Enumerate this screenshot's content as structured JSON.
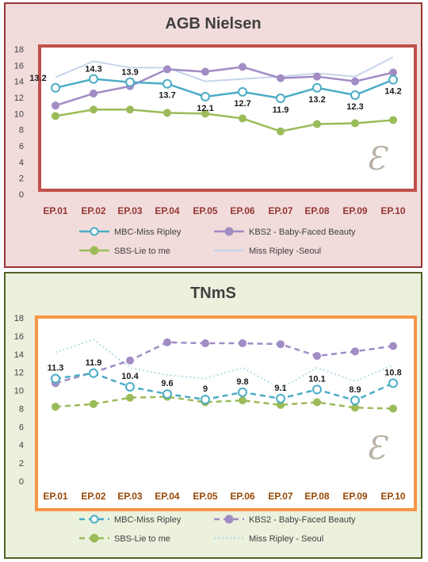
{
  "chart_data": [
    {
      "type": "line",
      "title": "AGB Nielsen",
      "categories": [
        "EP.01",
        "EP.02",
        "EP.03",
        "EP.04",
        "EP.05",
        "EP.06",
        "EP.07",
        "EP.08",
        "EP.09",
        "EP.10"
      ],
      "ylim": [
        0,
        18
      ],
      "yticks": [
        0,
        2,
        4,
        6,
        8,
        10,
        12,
        14,
        16,
        18
      ],
      "grid": false,
      "legend_position": "bottom",
      "plot_border_color": "#c0504d",
      "category_label_color": "#943634",
      "series": [
        {
          "name": "MBC-Miss Ripley",
          "color": "#4bacc6",
          "marker": "circle-open",
          "dash": "solid",
          "values": [
            13.2,
            14.3,
            13.9,
            13.7,
            12.1,
            12.7,
            11.9,
            13.2,
            12.3,
            14.2
          ],
          "labels": [
            "13.2",
            "14.3",
            "13.9",
            "13.7",
            "12.1",
            "12.7",
            "11.9",
            "13.2",
            "12.3",
            "14.2"
          ]
        },
        {
          "name": "KBS2 - Baby-Faced Beauty",
          "color": "#a18cc4",
          "marker": "circle",
          "dash": "solid",
          "values": [
            11.0,
            12.5,
            13.4,
            15.5,
            15.2,
            15.8,
            14.4,
            14.6,
            14.0,
            15.1
          ]
        },
        {
          "name": "SBS-Lie to me",
          "color": "#9bbb59",
          "marker": "circle",
          "dash": "solid",
          "values": [
            9.7,
            10.5,
            10.5,
            10.1,
            10.0,
            9.4,
            7.8,
            8.7,
            8.8,
            9.2
          ]
        },
        {
          "name": "Miss Ripley -Seoul",
          "color": "#c6d4ea",
          "marker": "none",
          "dash": "solid",
          "values": [
            14.5,
            16.5,
            15.7,
            15.7,
            14.0,
            14.3,
            14.6,
            15.0,
            14.6,
            17.0
          ]
        }
      ]
    },
    {
      "type": "line",
      "title": "TNmS",
      "categories": [
        "EP.01",
        "EP.02",
        "EP.03",
        "EP.04",
        "EP.05",
        "EP.06",
        "EP.07",
        "EP.08",
        "EP.09",
        "EP.10"
      ],
      "ylim": [
        0,
        18
      ],
      "yticks": [
        0,
        2,
        4,
        6,
        8,
        10,
        12,
        14,
        16,
        18
      ],
      "grid": false,
      "legend_position": "bottom",
      "plot_border_color": "#f79646",
      "category_label_color": "#974806",
      "series": [
        {
          "name": "MBC-Miss Ripley",
          "color": "#4bacc6",
          "marker": "circle-open",
          "dash": "dashed",
          "values": [
            11.3,
            11.9,
            10.4,
            9.6,
            9.0,
            9.8,
            9.1,
            10.1,
            8.9,
            10.8
          ],
          "labels": [
            "11.3",
            "11.9",
            "10.4",
            "9.6",
            "9",
            "9.8",
            "9.1",
            "10.1",
            "8.9",
            "10.8"
          ]
        },
        {
          "name": "KBS2 - Baby-Faced Beauty",
          "color": "#a18cc4",
          "marker": "circle",
          "dash": "dashed",
          "values": [
            10.8,
            12.0,
            13.3,
            15.3,
            15.2,
            15.2,
            15.1,
            13.8,
            14.3,
            14.9
          ]
        },
        {
          "name": "SBS-Lie to me",
          "color": "#9bbb59",
          "marker": "circle",
          "dash": "dashed",
          "values": [
            8.2,
            8.5,
            9.2,
            9.3,
            8.7,
            8.9,
            8.4,
            8.7,
            8.1,
            8.0
          ]
        },
        {
          "name": "Miss Ripley - Seoul",
          "color": "#b7dde8",
          "marker": "none",
          "dash": "dotted",
          "values": [
            14.2,
            15.6,
            12.5,
            11.7,
            11.3,
            12.5,
            10.2,
            12.5,
            11.0,
            12.8
          ]
        }
      ]
    }
  ],
  "logo": {
    "glyph": "Ɛ",
    "wing_left": "⟨",
    "wing_right": "⟩"
  }
}
